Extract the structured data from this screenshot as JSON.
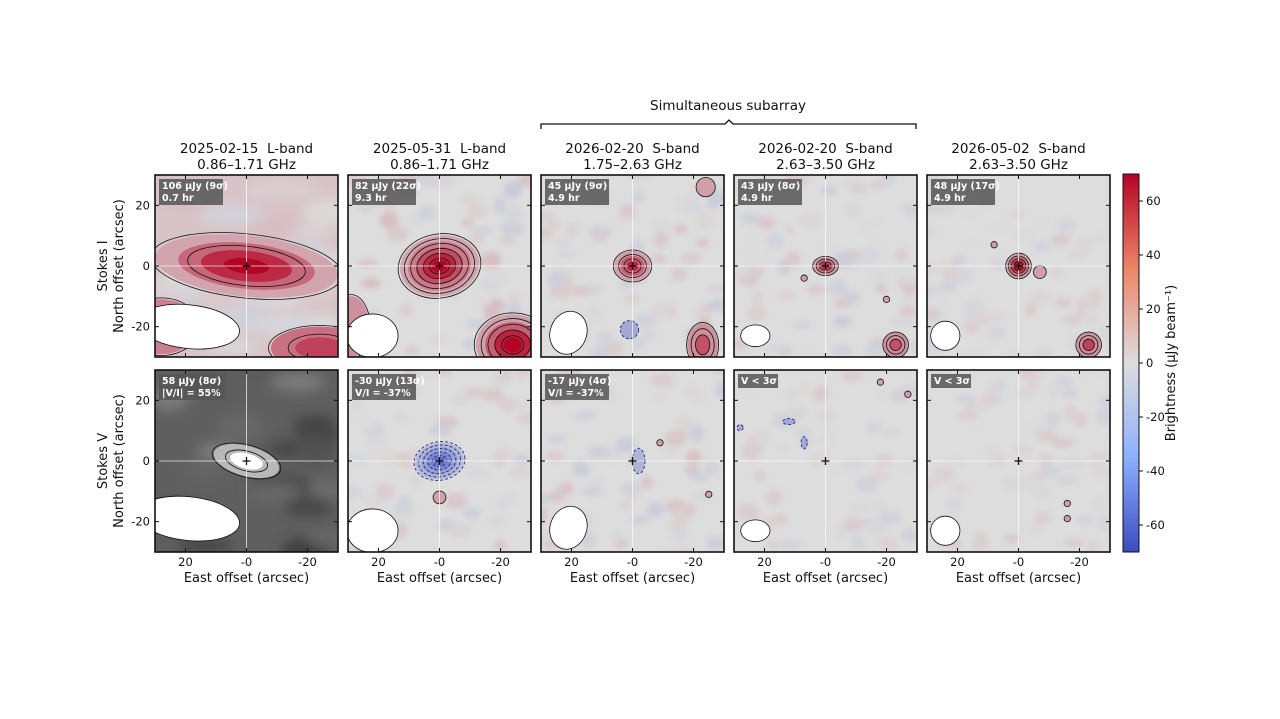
{
  "figure": {
    "bracket_label": "Simultaneous subarray",
    "row_labels": [
      {
        "stokes": "Stokes I",
        "ylabel": "North offset (arcsec)"
      },
      {
        "stokes": "Stokes V",
        "ylabel": "North offset (arcsec)"
      }
    ],
    "xlabel": "East offset (arcsec)",
    "x_ticks": [
      "20",
      "-0",
      "-20"
    ],
    "y_ticks": [
      "20",
      "0",
      "-20"
    ],
    "colorbar": {
      "label": "Brightness (μJy beam⁻¹)",
      "ticks": [
        "60",
        "40",
        "20",
        "0",
        "-20",
        "-40",
        "-60"
      ],
      "range": [
        -70,
        70
      ],
      "colors": [
        "#3b4cc0",
        "#dddddd",
        "#b40426"
      ]
    },
    "columns": [
      {
        "date": "2025-02-15",
        "band": "L-band",
        "freq": "0.86–1.71 GHz",
        "i_badge": [
          "106 μJy (9σ)",
          "0.7 hr"
        ],
        "v_badge": [
          "58 μJy (8σ)",
          "|V/I| = 55%"
        ]
      },
      {
        "date": "2025-05-31",
        "band": "L-band",
        "freq": "0.86–1.71 GHz",
        "i_badge": [
          "82 μJy (22σ)",
          "9.3 hr"
        ],
        "v_badge": [
          "-30 μJy (13σ)",
          "V/I = -37%"
        ]
      },
      {
        "date": "2026-02-20",
        "band": "S-band",
        "freq": "1.75–2.63 GHz",
        "i_badge": [
          "45 μJy (9σ)",
          "4.9 hr"
        ],
        "v_badge": [
          "-17 μJy (4σ)",
          "V/I = -37%"
        ]
      },
      {
        "date": "2026-02-20",
        "band": "S-band",
        "freq": "2.63–3.50 GHz",
        "i_badge": [
          "43 μJy (8σ)",
          "4.9 hr"
        ],
        "v_badge": [
          "V < 3σ"
        ]
      },
      {
        "date": "2026-05-02",
        "band": "S-band",
        "freq": "2.63–3.50 GHz",
        "i_badge": [
          "48 μJy (17σ)",
          "4.9 hr"
        ],
        "v_badge": [
          "V < 3σ"
        ]
      }
    ]
  },
  "chart_data": {
    "type": "heatmap",
    "x_axis": "East offset (arcsec)",
    "y_axis": "North offset (arcsec)",
    "xlim": [
      30,
      -30
    ],
    "ylim": [
      -30,
      30
    ],
    "colorbar_range": [
      -70,
      70
    ],
    "panels": [
      {
        "row": "Stokes I",
        "epoch": "2025-02-15",
        "flux": "106 μJy (9σ)",
        "time": "0.7 hr"
      },
      {
        "row": "Stokes I",
        "epoch": "2025-05-31",
        "flux": "82 μJy (22σ)",
        "time": "9.3 hr"
      },
      {
        "row": "Stokes I",
        "epoch": "2026-02-20",
        "freq": "1.75–2.63 GHz",
        "flux": "45 μJy (9σ)",
        "time": "4.9 hr"
      },
      {
        "row": "Stokes I",
        "epoch": "2026-02-20",
        "freq": "2.63–3.50 GHz",
        "flux": "43 μJy (8σ)",
        "time": "4.9 hr"
      },
      {
        "row": "Stokes I",
        "epoch": "2026-05-02",
        "flux": "48 μJy (17σ)",
        "time": "4.9 hr"
      },
      {
        "row": "Stokes V",
        "epoch": "2025-02-15",
        "flux": "58 μJy (8σ)",
        "fraction": "|V/I| = 55%"
      },
      {
        "row": "Stokes V",
        "epoch": "2025-05-31",
        "flux": "-30 μJy (13σ)",
        "fraction": "V/I = -37%"
      },
      {
        "row": "Stokes V",
        "epoch": "2026-02-20",
        "freq": "1.75–2.63 GHz",
        "flux": "-17 μJy (4σ)",
        "fraction": "V/I = -37%"
      },
      {
        "row": "Stokes V",
        "epoch": "2026-02-20",
        "freq": "2.63–3.50 GHz",
        "flux": "V < 3σ"
      },
      {
        "row": "Stokes V",
        "epoch": "2026-05-02",
        "flux": "V < 3σ"
      }
    ]
  }
}
